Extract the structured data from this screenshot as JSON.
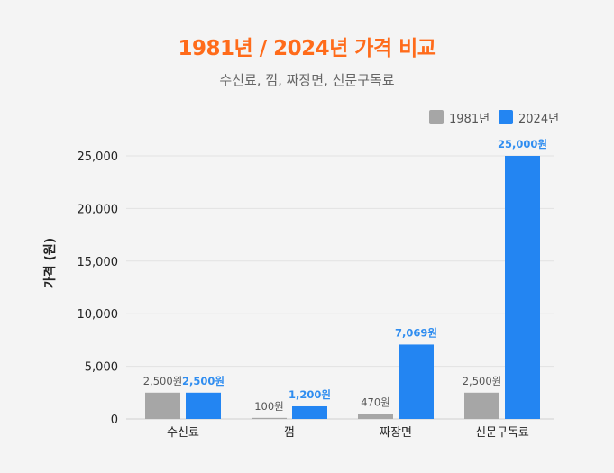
{
  "chart_data": {
    "type": "bar",
    "title": "1981년 / 2024년 가격 비교",
    "subtitle": "수신료, 껌, 짜장면, 신문구독료",
    "xlabel": "",
    "ylabel": "가격 (원)",
    "ylim": [
      0,
      25000
    ],
    "yticks": [
      0,
      5000,
      10000,
      15000,
      20000,
      25000
    ],
    "ytick_labels": [
      "0",
      "5,000",
      "10,000",
      "15,000",
      "20,000",
      "25,000"
    ],
    "grid": true,
    "legend_position": "top-right",
    "categories": [
      "수신료",
      "껌",
      "짜장면",
      "신문구독료"
    ],
    "series": [
      {
        "name": "1981년",
        "color": "#a6a6a6",
        "label_color": "#555555",
        "values": [
          2500,
          100,
          470,
          2500
        ],
        "labels": [
          "2,500원",
          "100원",
          "470원",
          "2,500원"
        ]
      },
      {
        "name": "2024년",
        "color": "#2385f2",
        "label_color": "#2f8df0",
        "values": [
          2500,
          1200,
          7069,
          25000
        ],
        "labels": [
          "2,500원",
          "1,200원",
          "7,069원",
          "25,000원"
        ]
      }
    ]
  },
  "colors": {
    "title": "#ff6b1a",
    "background": "#f4f4f4"
  }
}
